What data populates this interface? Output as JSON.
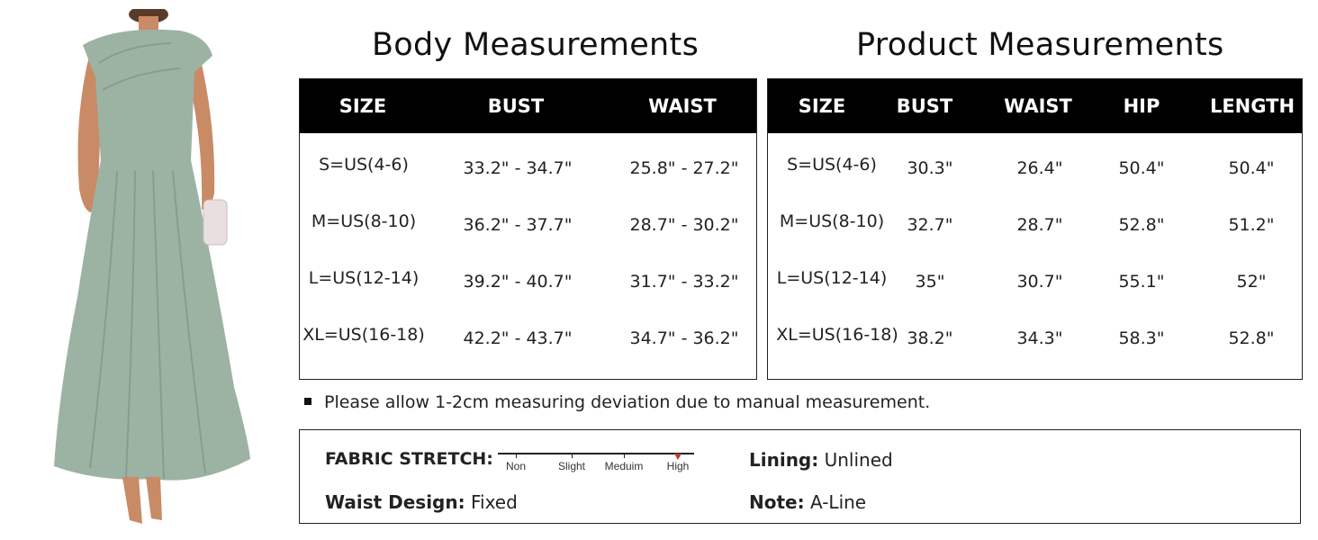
{
  "colors": {
    "dress": "#9cb3a4",
    "header_bg": "#000000",
    "skin": "#c98a66",
    "marker": "#c0392b"
  },
  "body_measurements": {
    "title": "Body Measurements",
    "headers": [
      "SIZE",
      "BUST",
      "WAIST"
    ],
    "rows": [
      [
        "S=US(4-6)",
        "33.2\" - 34.7\"",
        "25.8\" - 27.2\""
      ],
      [
        "M=US(8-10)",
        "36.2\" - 37.7\"",
        "28.7\" - 30.2\""
      ],
      [
        "L=US(12-14)",
        "39.2\" - 40.7\"",
        "31.7\" - 33.2\""
      ],
      [
        "XL=US(16-18)",
        "42.2\" - 43.7\"",
        "34.7\" - 36.2\""
      ]
    ]
  },
  "product_measurements": {
    "title": "Product Measurements",
    "headers": [
      "SIZE",
      "BUST",
      "WAIST",
      "HIP",
      "LENGTH"
    ],
    "rows": [
      [
        "S=US(4-6)",
        "30.3\"",
        "26.4\"",
        "50.4\"",
        "50.4\""
      ],
      [
        "M=US(8-10)",
        "32.7\"",
        "28.7\"",
        "52.8\"",
        "51.2\""
      ],
      [
        "L=US(12-14)",
        "35\"",
        "30.7\"",
        "55.1\"",
        "52\""
      ],
      [
        "XL=US(16-18)",
        "38.2\"",
        "34.3\"",
        "58.3\"",
        "52.8\""
      ]
    ]
  },
  "note": "Please allow 1-2cm measuring deviation due to manual measurement.",
  "info": {
    "fabric_stretch_label": "FABRIC STRETCH:",
    "stretch_levels": [
      "Non",
      "Slight",
      "Meduim",
      "High"
    ],
    "stretch_selected": "High",
    "lining_label": "Lining:",
    "lining_value": "Unlined",
    "waist_label": "Waist Design:",
    "waist_value": "Fixed",
    "note_label": "Note:",
    "note_value": "A-Line"
  }
}
